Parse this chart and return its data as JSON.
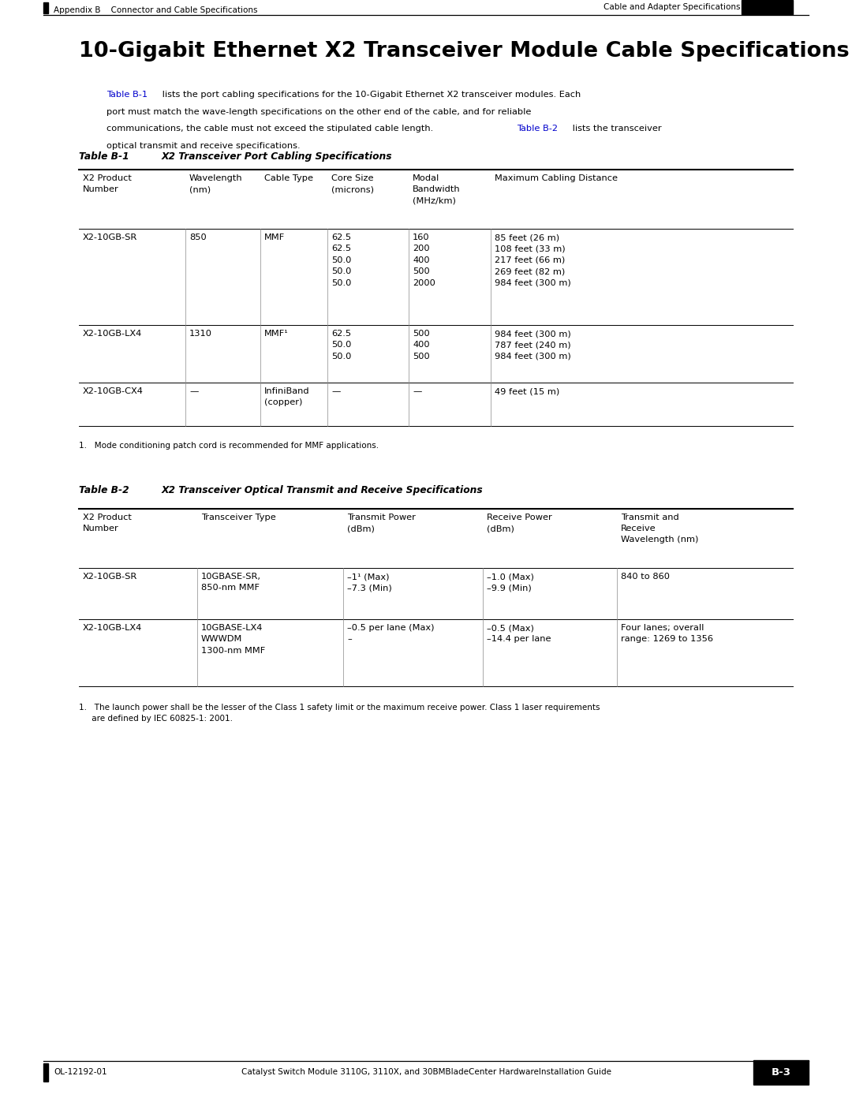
{
  "page_title": "10-Gigabit Ethernet X2 Transceiver Module Cable Specifications",
  "header_left": "Appendix B    Connector and Cable Specifications",
  "header_right": "Cable and Adapter Specifications",
  "footer_left": "OL-12192-01",
  "footer_center": "Catalyst Switch Module 3110G, 3110X, and 30BMBladeCenter Hardware⁠Installation Guide",
  "footer_right": "B-3",
  "body_text_parts": [
    {
      "text": "Table B-1",
      "color": "#0000cc"
    },
    {
      "text": " lists the port cabling specifications for the 10-Gigabit Ethernet X2 transceiver modules. Each\nport must match the wave-length specifications on the other end of the cable, and for reliable\ncommunications, the cable must not exceed the stipulated cable length. ",
      "color": "#000000"
    },
    {
      "text": "Table B-2",
      "color": "#0000cc"
    },
    {
      "text": " lists the transceiver\noptical transmit and receive specifications.",
      "color": "#000000"
    }
  ],
  "table1_title": "Table B-1",
  "table1_subtitle": "X2 Transceiver Port Cabling Specifications",
  "table1_col_headers": [
    "X2 Product\nNumber",
    "Wavelength\n(nm)",
    "Cable Type",
    "Core Size\n(microns)",
    "Modal\nBandwidth\n(MHz/km)",
    "Maximum Cabling Distance"
  ],
  "table1_rows": [
    [
      "X2-10GB-SR",
      "850",
      "MMF",
      "62.5\n62.5\n50.0\n50.0\n50.0",
      "160\n200\n400\n500\n2000",
      "85 feet (26 m)\n108 feet (33 m)\n217 feet (66 m)\n269 feet (82 m)\n984 feet (300 m)"
    ],
    [
      "X2-10GB-LX4",
      "1310",
      "MMF¹",
      "62.5\n50.0\n50.0",
      "500\n400\n500",
      "984 feet (300 m)\n787 feet (240 m)\n984 feet (300 m)"
    ],
    [
      "X2-10GB-CX4",
      "—",
      "InfiniBand\n(copper)",
      "—",
      "—",
      "49 feet (15 m)"
    ]
  ],
  "table1_footnote": "1.   Mode conditioning patch cord is recommended for MMF applications.",
  "table2_title": "Table B-2",
  "table2_subtitle": "X2 Transceiver Optical Transmit and Receive Specifications",
  "table2_col_headers": [
    "X2 Product\nNumber",
    "Transceiver Type",
    "Transmit Power\n(dBm)",
    "Receive Power\n(dBm)",
    "Transmit and\nReceive\nWavelength (nm)"
  ],
  "table2_rows": [
    [
      "X2-10GB-SR",
      "10GBASE-SR,\n850-nm MMF",
      "–1¹ (Max)\n–7.3 (Min)",
      "–1.0 (Max)\n–9.9 (Min)",
      "840 to 860"
    ],
    [
      "X2-10GB-LX4",
      "10GBASE-LX4\nWWWDM\n1300-nm MMF",
      "–0.5 per lane (Max)\n–",
      "–0.5 (Max)\n–14.4 per lane",
      "Four lanes; overall\nrange: 1269 to 1356"
    ]
  ],
  "table2_footnote": "1.   The launch power shall be the lesser of the Class 1 safety limit or the maximum receive power. Class 1 laser requirements\n     are defined by IEC 60825-1: 2001.",
  "bg_color": "#ffffff",
  "text_color": "#000000",
  "link_color": "#0000cc"
}
